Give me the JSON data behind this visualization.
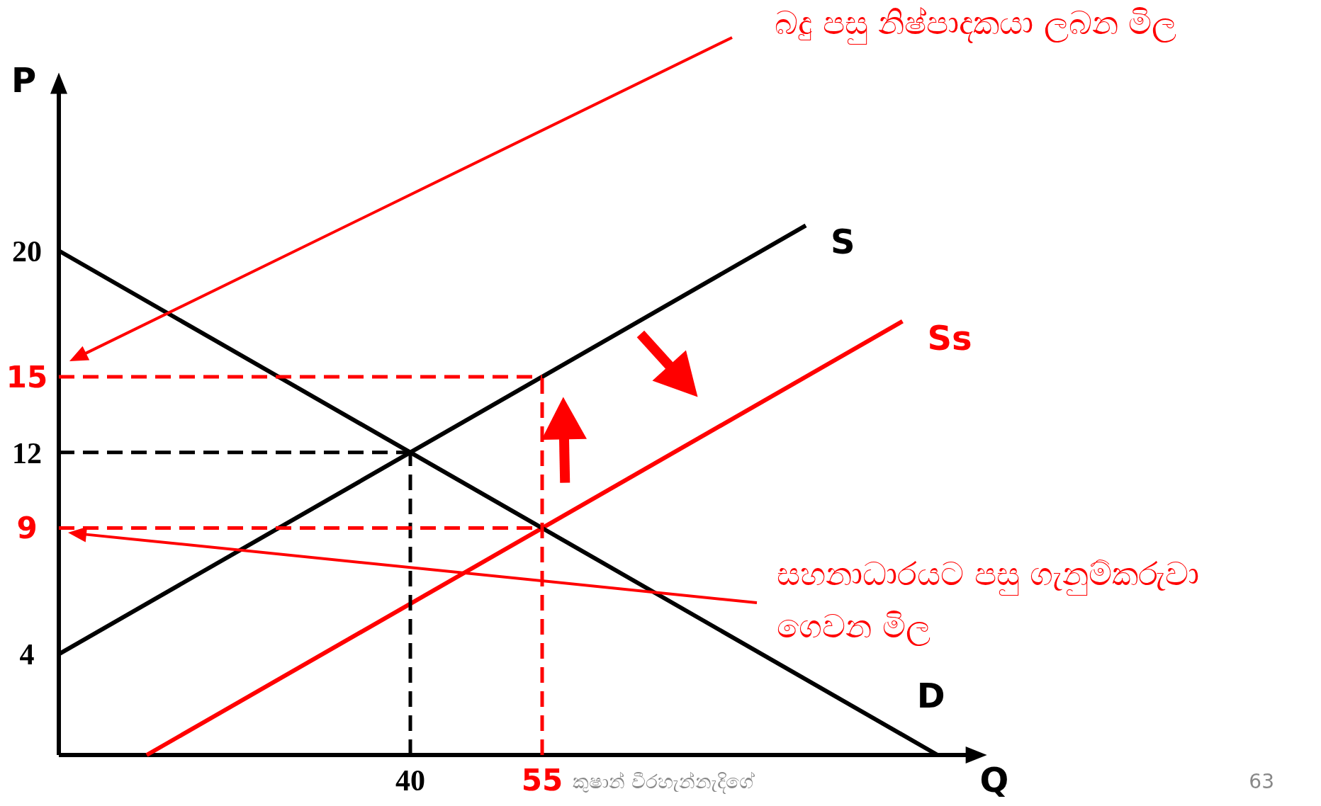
{
  "chart_data": {
    "type": "line",
    "xlabel": "Q",
    "ylabel": "P",
    "xlim": [
      0,
      104
    ],
    "ylim": [
      0,
      26.5
    ],
    "xticks": [
      40,
      55
    ],
    "yticks": [
      4,
      9,
      12,
      15,
      20
    ],
    "grid": false,
    "marker": "none",
    "series": [
      {
        "name": "S",
        "color": "#000000",
        "x": [
          0,
          85
        ],
        "values": [
          4,
          21
        ],
        "line_style": "solid"
      },
      {
        "name": "Ss",
        "color": "#ff0000",
        "x": [
          10,
          96
        ],
        "values": [
          0,
          17.2
        ],
        "line_style": "solid"
      },
      {
        "name": "D",
        "color": "#000000",
        "x": [
          0,
          100
        ],
        "values": [
          20,
          0
        ],
        "line_style": "solid"
      },
      {
        "color": "#000000",
        "x": [
          0,
          40
        ],
        "values": [
          12,
          12
        ],
        "line_style": "dashed"
      },
      {
        "color": "#000000",
        "x": [
          40,
          40
        ],
        "values": [
          0,
          12
        ],
        "line_style": "dashed"
      },
      {
        "color": "#ff0000",
        "x": [
          0,
          55
        ],
        "values": [
          15,
          15
        ],
        "line_style": "dashed"
      },
      {
        "color": "#ff0000",
        "x": [
          55,
          55
        ],
        "values": [
          0,
          15
        ],
        "line_style": "dashed"
      },
      {
        "color": "#ff0000",
        "x": [
          0,
          55
        ],
        "values": [
          9,
          9
        ],
        "line_style": "dashed"
      }
    ],
    "annotations": [
      "බදු පසු නිෂ්පාදකයා ලබන මිල",
      "සහනාධාරයට පසු ගැනුම්කරුවා ගෙවන මිල",
      "කුෂාන් වීරහැන්නැදිගේ",
      "63"
    ]
  }
}
